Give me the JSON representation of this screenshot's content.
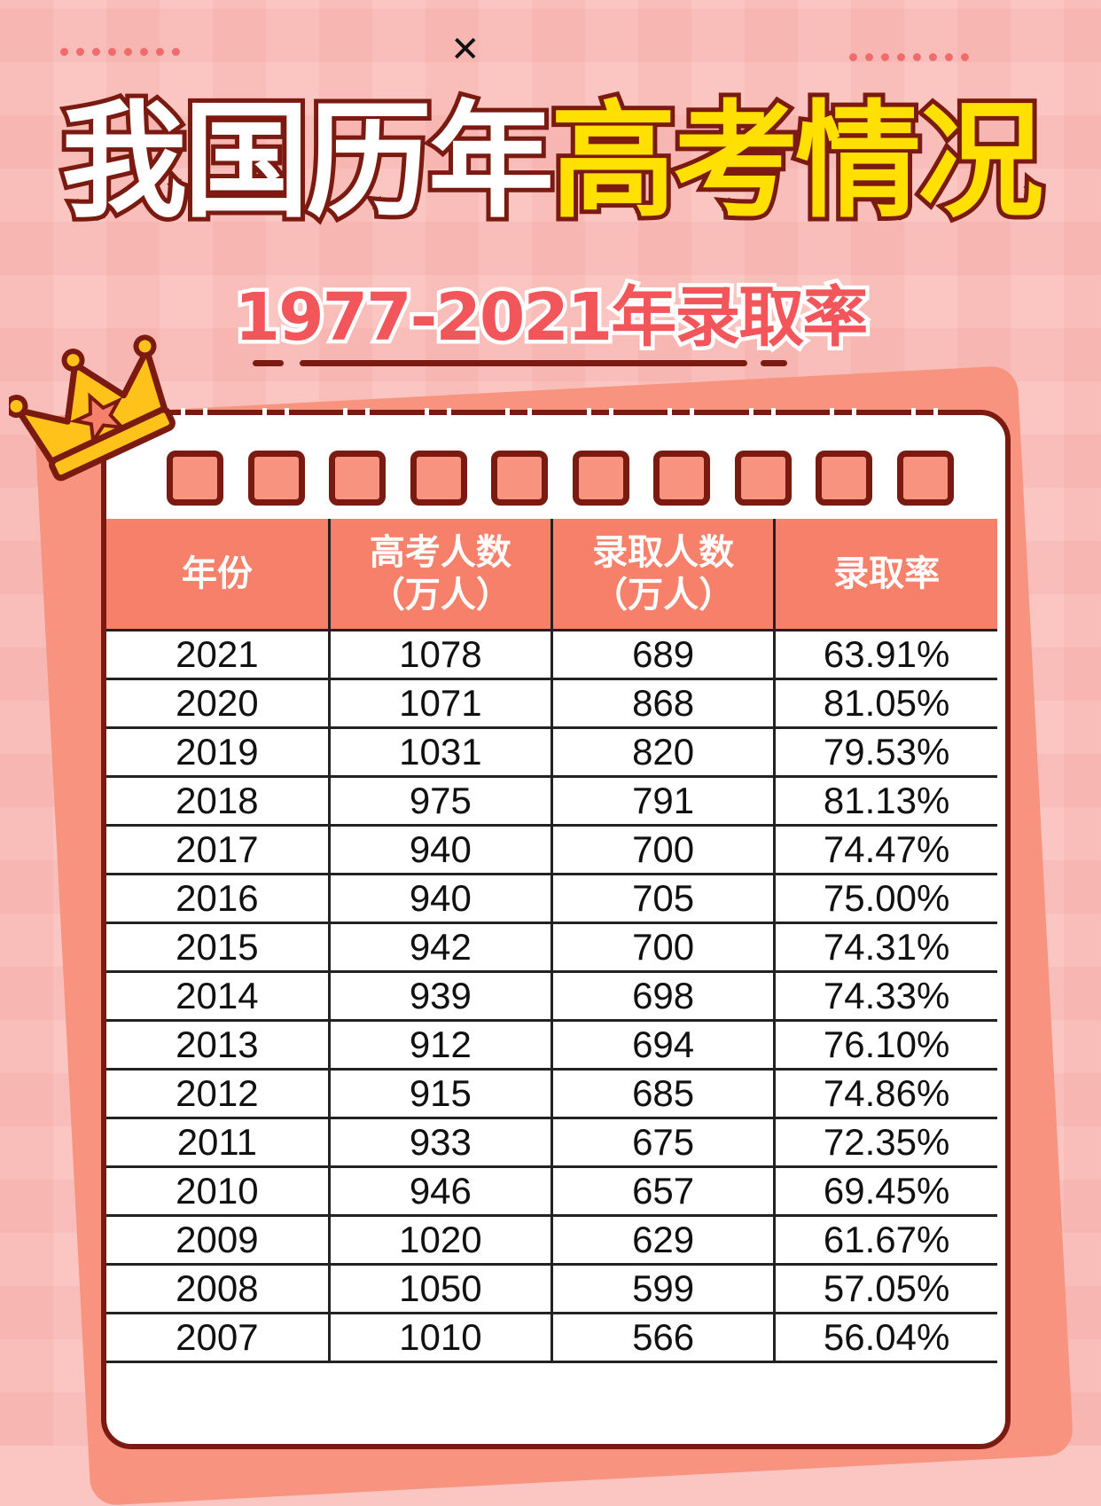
{
  "close_icon": "close-icon",
  "title": {
    "part1": "我国历年",
    "part2": "高考情况"
  },
  "subtitle": "1977-2021年录取率",
  "colors": {
    "background": "#fbc6c2",
    "header": "#f7806a",
    "outline": "#7a1a10",
    "highlight": "#ffe000",
    "subtitle": "#f2555a"
  },
  "table": {
    "headers": [
      [
        "年份"
      ],
      [
        "高考人数",
        "（万人）"
      ],
      [
        "录取人数",
        "（万人）"
      ],
      [
        "录取率"
      ]
    ],
    "rows": [
      [
        "2021",
        "1078",
        "689",
        "63.91%"
      ],
      [
        "2020",
        "1071",
        "868",
        "81.05%"
      ],
      [
        "2019",
        "1031",
        "820",
        "79.53%"
      ],
      [
        "2018",
        "975",
        "791",
        "81.13%"
      ],
      [
        "2017",
        "940",
        "700",
        "74.47%"
      ],
      [
        "2016",
        "940",
        "705",
        "75.00%"
      ],
      [
        "2015",
        "942",
        "700",
        "74.31%"
      ],
      [
        "2014",
        "939",
        "698",
        "74.33%"
      ],
      [
        "2013",
        "912",
        "694",
        "76.10%"
      ],
      [
        "2012",
        "915",
        "685",
        "74.86%"
      ],
      [
        "2011",
        "933",
        "675",
        "72.35%"
      ],
      [
        "2010",
        "946",
        "657",
        "69.45%"
      ],
      [
        "2009",
        "1020",
        "629",
        "61.67%"
      ],
      [
        "2008",
        "1050",
        "599",
        "57.05%"
      ],
      [
        "2007",
        "1010",
        "566",
        "56.04%"
      ]
    ]
  }
}
